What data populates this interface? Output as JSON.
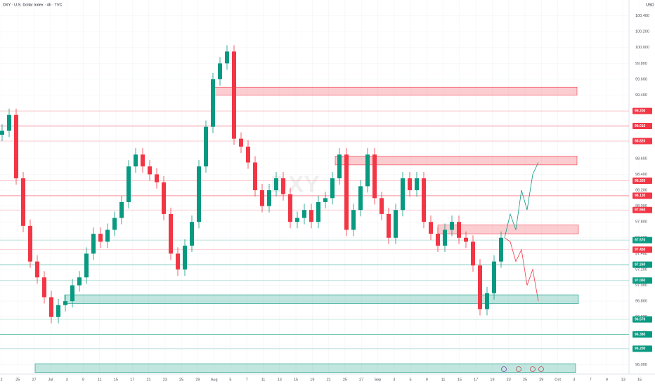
{
  "header": {
    "symbol": "DXY · U.S. Dollar Index · 4h · TVC",
    "currency": "USD",
    "watermark": "DXY"
  },
  "chart_data": {
    "type": "candlestick",
    "ylim": [
      95.88,
      100.6
    ],
    "yticks": [
      {
        "value": 96.0,
        "label": "96.000"
      },
      {
        "value": 96.2,
        "label": "96.200"
      },
      {
        "value": 96.4,
        "label": "96.400"
      },
      {
        "value": 96.6,
        "label": "96.600"
      },
      {
        "value": 96.8,
        "label": "96.800"
      },
      {
        "value": 97.0,
        "label": "97.000"
      },
      {
        "value": 97.2,
        "label": "97.200"
      },
      {
        "value": 97.4,
        "label": "97.400"
      },
      {
        "value": 97.6,
        "label": "97.600"
      },
      {
        "value": 97.8,
        "label": "97.800"
      },
      {
        "value": 98.0,
        "label": "98.000"
      },
      {
        "value": 98.2,
        "label": "98.200"
      },
      {
        "value": 98.4,
        "label": "98.400"
      },
      {
        "value": 98.6,
        "label": "98.600"
      },
      {
        "value": 98.8,
        "label": "98.800"
      },
      {
        "value": 99.0,
        "label": "99.000"
      },
      {
        "value": 99.2,
        "label": "99.200"
      },
      {
        "value": 99.4,
        "label": "99.400"
      },
      {
        "value": 99.6,
        "label": "99.600"
      },
      {
        "value": 99.8,
        "label": "99.800"
      },
      {
        "value": 100.0,
        "label": "100.000"
      },
      {
        "value": 100.2,
        "label": "100.200"
      },
      {
        "value": 100.4,
        "label": "100.400"
      }
    ],
    "x_labels": [
      "2",
      "25",
      "27",
      "Jul",
      "3",
      "9",
      "11",
      "15",
      "17",
      "21",
      "23",
      "25",
      "29",
      "Aug",
      "5",
      "7",
      "11",
      "13",
      "15",
      "19",
      "21",
      "25",
      "27",
      "Sep",
      "3",
      "5",
      "9",
      "11",
      "15",
      "17",
      "19",
      "23",
      "25",
      "29",
      "Oct",
      "3",
      "7",
      "9",
      "13",
      "15"
    ],
    "open": [
      98.9,
      98.95,
      99.15,
      98.35,
      97.75,
      97.3,
      97.1,
      96.85,
      96.6,
      96.75,
      96.8,
      97.0,
      97.1,
      97.4,
      97.65,
      97.55,
      97.7,
      97.85,
      98.05,
      98.5,
      98.65,
      98.5,
      98.4,
      98.3,
      97.9,
      97.4,
      97.2,
      97.5,
      97.8,
      98.5,
      99.0,
      99.6,
      99.8,
      99.95,
      98.85,
      98.75,
      98.55,
      98.2,
      98.0,
      98.2,
      98.35,
      98.15,
      97.8,
      97.85,
      97.95,
      97.8,
      98.05,
      98.1,
      98.35,
      98.65,
      97.7,
      97.95,
      98.25,
      98.65,
      98.1,
      97.9,
      97.6,
      97.95,
      98.35,
      98.2,
      98.35,
      97.8,
      97.65,
      97.5,
      97.7,
      97.8,
      97.6,
      97.55,
      97.25,
      96.7,
      96.9,
      97.3
    ],
    "high": [
      99.03,
      99.23,
      99.23,
      98.43,
      97.83,
      97.38,
      97.18,
      96.93,
      96.83,
      96.88,
      97.08,
      97.18,
      97.48,
      97.73,
      97.73,
      97.78,
      97.93,
      98.13,
      98.58,
      98.73,
      98.73,
      98.58,
      98.48,
      98.38,
      97.98,
      97.48,
      97.58,
      97.88,
      98.58,
      99.08,
      99.68,
      99.88,
      100.03,
      100.03,
      98.93,
      98.83,
      98.63,
      98.28,
      98.28,
      98.43,
      98.43,
      98.23,
      97.93,
      98.03,
      98.03,
      98.13,
      98.18,
      98.43,
      98.73,
      98.73,
      98.03,
      98.33,
      98.73,
      98.73,
      98.18,
      97.98,
      98.03,
      98.43,
      98.43,
      98.43,
      98.43,
      97.88,
      97.73,
      97.78,
      97.88,
      97.88,
      97.68,
      97.63,
      97.33,
      96.98,
      97.38,
      97.68
    ],
    "low": [
      98.82,
      98.87,
      98.27,
      97.67,
      97.22,
      97.02,
      96.77,
      96.52,
      96.52,
      96.67,
      96.72,
      96.92,
      97.02,
      97.32,
      97.47,
      97.47,
      97.62,
      97.77,
      97.97,
      98.42,
      98.42,
      98.32,
      98.22,
      97.82,
      97.32,
      97.12,
      97.12,
      97.42,
      97.72,
      98.42,
      98.92,
      99.52,
      99.72,
      98.77,
      98.67,
      98.47,
      98.12,
      97.92,
      97.92,
      98.12,
      98.07,
      97.72,
      97.72,
      97.77,
      97.72,
      97.72,
      97.97,
      98.02,
      98.27,
      97.62,
      97.62,
      97.87,
      98.17,
      98.02,
      97.82,
      97.52,
      97.52,
      97.87,
      98.12,
      98.12,
      97.72,
      97.57,
      97.42,
      97.42,
      97.62,
      97.52,
      97.47,
      97.17,
      96.62,
      96.62,
      96.82,
      97.22
    ],
    "close": [
      98.95,
      99.15,
      98.35,
      97.75,
      97.3,
      97.1,
      96.85,
      96.6,
      96.75,
      96.8,
      97.0,
      97.1,
      97.4,
      97.65,
      97.55,
      97.7,
      97.85,
      98.05,
      98.5,
      98.65,
      98.5,
      98.4,
      98.3,
      97.9,
      97.4,
      97.2,
      97.5,
      97.8,
      98.5,
      99.0,
      99.6,
      99.8,
      99.95,
      98.85,
      98.75,
      98.55,
      98.2,
      98.0,
      98.2,
      98.35,
      98.15,
      97.8,
      97.85,
      97.95,
      97.8,
      98.05,
      98.1,
      98.35,
      98.65,
      97.7,
      97.95,
      98.25,
      98.65,
      98.1,
      97.9,
      97.6,
      97.95,
      98.35,
      98.2,
      98.35,
      97.8,
      97.65,
      97.5,
      97.7,
      97.8,
      97.6,
      97.55,
      97.25,
      96.7,
      96.9,
      97.3,
      97.6
    ],
    "up_color": "#089981",
    "down_color": "#f23645",
    "zones": [
      {
        "top": 99.5,
        "bottom": 99.4,
        "color": "#f23645"
      },
      {
        "top": 98.63,
        "bottom": 98.52,
        "color": "#f23645"
      },
      {
        "top": 97.76,
        "bottom": 97.65,
        "color": "#f23645"
      },
      {
        "top": 96.88,
        "bottom": 96.77,
        "color": "#089981"
      },
      {
        "top": 96.01,
        "bottom": 95.9,
        "color": "#089981"
      }
    ],
    "levels": [
      {
        "value": 99.2,
        "label": "99.200",
        "color": "#f23645"
      },
      {
        "value": 99.01,
        "label": "99.010",
        "color": "#f23645"
      },
      {
        "value": 98.82,
        "label": "98.820",
        "color": "#f23645"
      },
      {
        "value": 98.32,
        "label": "98.320",
        "color": "#f23645"
      },
      {
        "value": 98.13,
        "label": "98.130",
        "color": "#f23645"
      },
      {
        "value": 97.95,
        "label": "97.950",
        "color": "#f23645"
      },
      {
        "value": 97.57,
        "label": "97.570",
        "color": "#089981"
      },
      {
        "value": 97.45,
        "label": "97.450",
        "color": "#f23645"
      },
      {
        "value": 97.26,
        "label": "97.260",
        "color": "#089981"
      },
      {
        "value": 97.06,
        "label": "97.060",
        "color": "#089981"
      },
      {
        "value": 96.57,
        "label": "96.570",
        "color": "#089981"
      },
      {
        "value": 96.38,
        "label": "96.380",
        "color": "#089981"
      },
      {
        "value": 96.2,
        "label": "96.200",
        "color": "#089981"
      }
    ],
    "projections": [
      {
        "color": "#089981",
        "values": [
          97.6,
          97.9,
          97.7,
          98.2,
          97.95,
          98.4,
          98.55
        ]
      },
      {
        "color": "#f23645",
        "values": [
          97.6,
          97.55,
          97.3,
          97.45,
          97.0,
          97.2,
          96.8
        ]
      }
    ]
  }
}
